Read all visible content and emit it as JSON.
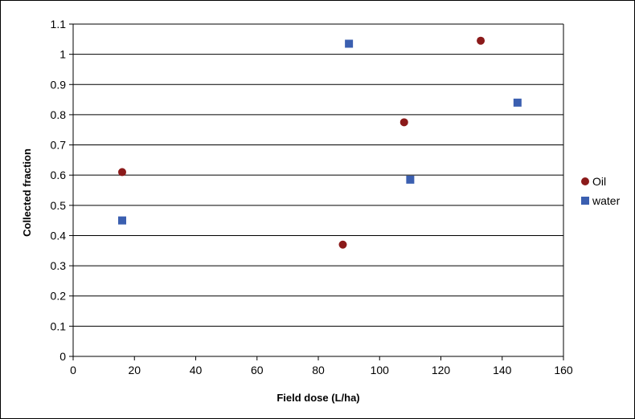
{
  "chart_data": {
    "type": "scatter",
    "xlabel": "Field dose (L/ha)",
    "ylabel": "Collected fraction",
    "xlim": [
      0,
      160
    ],
    "ylim": [
      0,
      1.1
    ],
    "xticks": [
      "0",
      "20",
      "40",
      "60",
      "80",
      "100",
      "120",
      "140",
      "160"
    ],
    "yticks": [
      "0",
      "0.1",
      "0.2",
      "0.3",
      "0.4",
      "0.5",
      "0.6",
      "0.7",
      "0.8",
      "0.9",
      "1",
      "1.1"
    ],
    "grid": "horizontal",
    "legend_position": "right",
    "series": [
      {
        "name": "Oil",
        "marker": "circle",
        "color": "#8b1a1a",
        "x": [
          16,
          88,
          108,
          133
        ],
        "y": [
          0.61,
          0.37,
          0.775,
          1.045
        ]
      },
      {
        "name": "water",
        "marker": "square",
        "color": "#3b5fb0",
        "x": [
          16,
          90,
          110,
          145
        ],
        "y": [
          0.45,
          1.035,
          0.585,
          0.84
        ]
      }
    ]
  }
}
